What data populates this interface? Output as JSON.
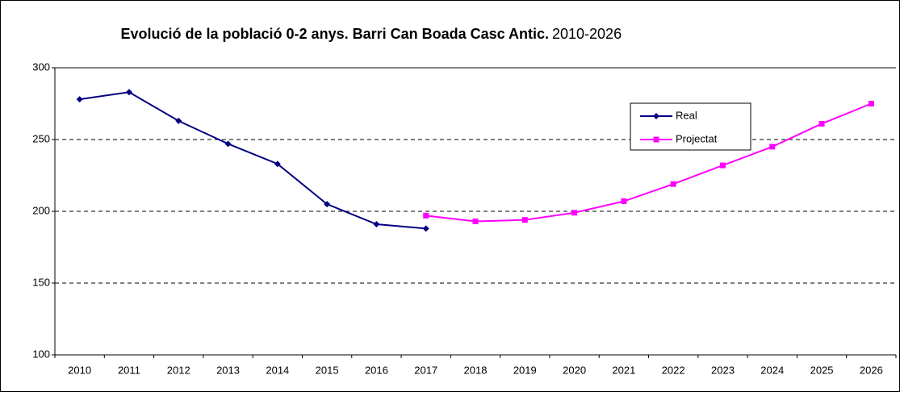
{
  "chart_data": {
    "type": "line",
    "title": "Evolució de la població 0-2 anys. Barri Can Boada Casc Antic.",
    "title_years": "2010-2026",
    "categories": [
      "2010",
      "2011",
      "2012",
      "2013",
      "2014",
      "2015",
      "2016",
      "2017",
      "2018",
      "2019",
      "2020",
      "2021",
      "2022",
      "2023",
      "2024",
      "2025",
      "2026"
    ],
    "series": [
      {
        "name": "Real",
        "color": "#000080",
        "marker": "diamond",
        "values": [
          278,
          283,
          263,
          247,
          233,
          205,
          191,
          188,
          null,
          null,
          null,
          null,
          null,
          null,
          null,
          null,
          null
        ]
      },
      {
        "name": "Projectat",
        "color": "#ff00ff",
        "marker": "square",
        "values": [
          null,
          null,
          null,
          null,
          null,
          null,
          null,
          197,
          193,
          194,
          199,
          207,
          219,
          232,
          245,
          261,
          275
        ]
      }
    ],
    "ylim": [
      100,
      300
    ],
    "yticks": [
      100,
      150,
      200,
      250,
      300
    ],
    "grid": true,
    "legend": "upper right"
  }
}
